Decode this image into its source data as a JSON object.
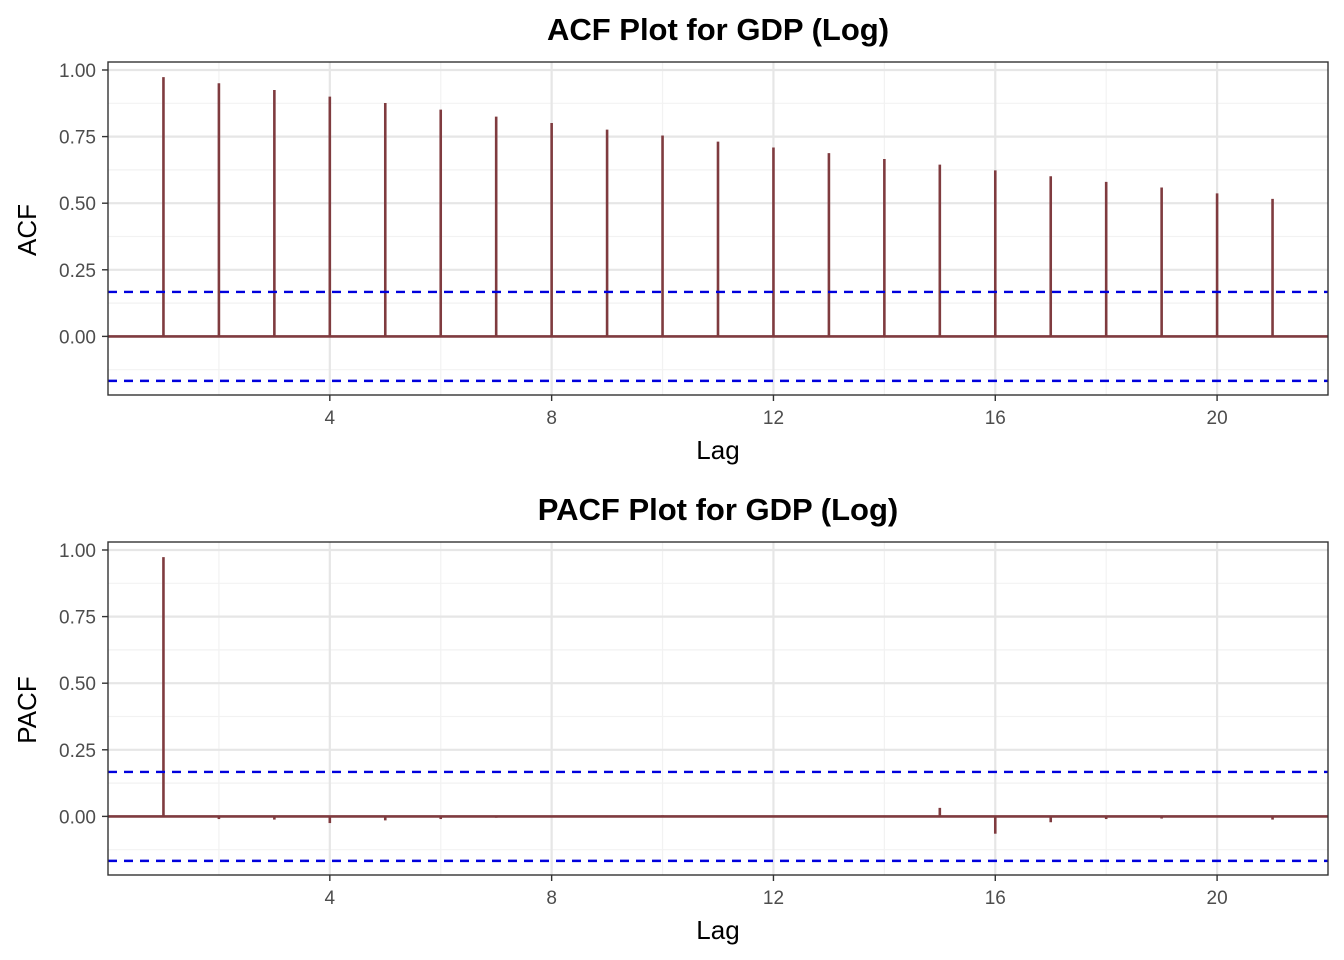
{
  "colors": {
    "stem": "#7f3b3f",
    "ci_line": "#0000dd",
    "grid_major": "#e6e6e6",
    "grid_minor": "#f2f2f2",
    "panel_border": "#333333"
  },
  "chart_data": [
    {
      "type": "bar",
      "title": "ACF Plot for GDP (Log)",
      "xlabel": "Lag",
      "ylabel": "ACF",
      "xlim": [
        0,
        22
      ],
      "ylim": [
        -0.22,
        1.03
      ],
      "x_ticks": [
        "4",
        "8",
        "12",
        "16",
        "20"
      ],
      "y_ticks": [
        "1.00",
        "0.75",
        "0.50",
        "0.25",
        "0.00"
      ],
      "confidence_bound": 0.167,
      "grid": true,
      "lags": [
        1,
        2,
        3,
        4,
        5,
        6,
        7,
        8,
        9,
        10,
        11,
        12,
        13,
        14,
        15,
        16,
        17,
        18,
        19,
        20,
        21
      ],
      "values": [
        0.973,
        0.95,
        0.925,
        0.9,
        0.876,
        0.851,
        0.825,
        0.801,
        0.776,
        0.754,
        0.731,
        0.709,
        0.688,
        0.666,
        0.645,
        0.623,
        0.601,
        0.58,
        0.559,
        0.537,
        0.516
      ]
    },
    {
      "type": "bar",
      "title": "PACF Plot for GDP (Log)",
      "xlabel": "Lag",
      "ylabel": "PACF",
      "xlim": [
        0,
        22
      ],
      "ylim": [
        -0.22,
        1.03
      ],
      "x_ticks": [
        "4",
        "8",
        "12",
        "16",
        "20"
      ],
      "y_ticks": [
        "1.00",
        "0.75",
        "0.50",
        "0.25",
        "0.00"
      ],
      "confidence_bound": 0.167,
      "grid": true,
      "lags": [
        1,
        2,
        3,
        4,
        5,
        6,
        7,
        8,
        9,
        10,
        11,
        12,
        13,
        14,
        15,
        16,
        17,
        18,
        19,
        20,
        21
      ],
      "values": [
        0.973,
        -0.01,
        -0.012,
        -0.025,
        -0.015,
        -0.01,
        -0.005,
        -0.004,
        -0.004,
        0.004,
        -0.003,
        -0.002,
        -0.003,
        -0.003,
        0.032,
        -0.065,
        -0.022,
        -0.01,
        -0.008,
        -0.004,
        -0.012
      ]
    }
  ]
}
